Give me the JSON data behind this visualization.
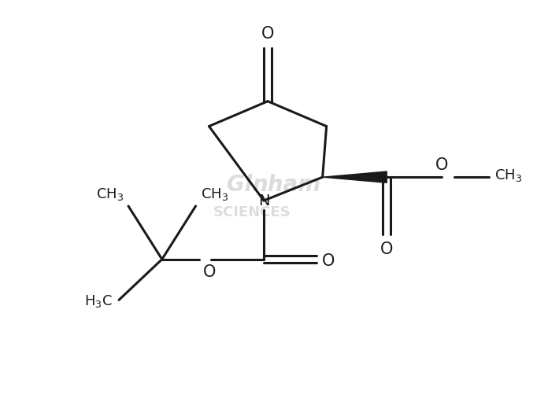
{
  "background": "#ffffff",
  "line_color": "#1a1a1a",
  "line_width": 2.2,
  "text_color": "#1a1a1a",
  "watermark_color": "#c0c0c0",
  "figsize": [
    6.96,
    5.2
  ],
  "dpi": 100,
  "xlim": [
    0,
    6.96
  ],
  "ylim": [
    0,
    5.2
  ]
}
